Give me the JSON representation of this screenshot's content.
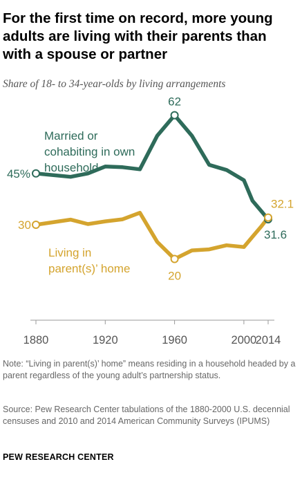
{
  "header": {
    "title": "For the first time on record, more young adults are living with their parents than with a spouse or partner",
    "subtitle": "Share of 18- to 34-year-olds by living arrangements"
  },
  "footer": {
    "note": "Note: “Living in parent(s)’ home” means residing in a household headed by a parent regardless of the young adult’s partnership status.",
    "source": "Source: Pew Research Center tabulations of the 1880-2000 U.S. decennial censuses and 2010 and 2014 American Community Surveys (IPUMS)",
    "brand": "PEW RESEARCH CENTER"
  },
  "chart_data": {
    "type": "line",
    "xlim": [
      1880,
      2014
    ],
    "ylim": [
      10,
      70
    ],
    "x_ticks": [
      {
        "value": 1880,
        "label": "1880"
      },
      {
        "value": 1920,
        "label": "1920"
      },
      {
        "value": 1960,
        "label": "1960"
      },
      {
        "value": 2000,
        "label": "2000"
      },
      {
        "value": 2014,
        "label": "2014"
      }
    ],
    "series": [
      {
        "key": "married",
        "name": "Married or cohabiting in own household",
        "label_lines": [
          "Married or",
          "cohabiting in own",
          "household"
        ],
        "color": "#2e6b5a",
        "x": [
          1880,
          1900,
          1910,
          1920,
          1930,
          1940,
          1950,
          1960,
          1970,
          1980,
          1990,
          2000,
          2005,
          2010,
          2014
        ],
        "values": [
          45,
          44,
          45,
          47,
          46.8,
          46.2,
          56,
          62,
          56,
          47.5,
          46,
          43,
          37,
          34,
          31.6
        ],
        "annotations": [
          {
            "index": 0,
            "text": "45%"
          },
          {
            "index": 7,
            "text": "62"
          },
          {
            "index": 14,
            "text": "31.6"
          }
        ]
      },
      {
        "key": "parents",
        "name": "Living in parent(s)’ home",
        "label_lines": [
          "Living in",
          "parent(s)’ home"
        ],
        "color": "#d4a42e",
        "x": [
          1880,
          1900,
          1910,
          1920,
          1930,
          1940,
          1950,
          1960,
          1970,
          1980,
          1990,
          2000,
          2005,
          2010,
          2014
        ],
        "values": [
          30,
          31.5,
          30.2,
          31,
          31.6,
          33.5,
          25,
          20,
          22.5,
          22.8,
          24,
          23.5,
          26.5,
          29.5,
          32.1
        ],
        "annotations": [
          {
            "index": 0,
            "text": "30"
          },
          {
            "index": 7,
            "text": "20"
          },
          {
            "index": 14,
            "text": "32.1"
          }
        ]
      }
    ]
  }
}
